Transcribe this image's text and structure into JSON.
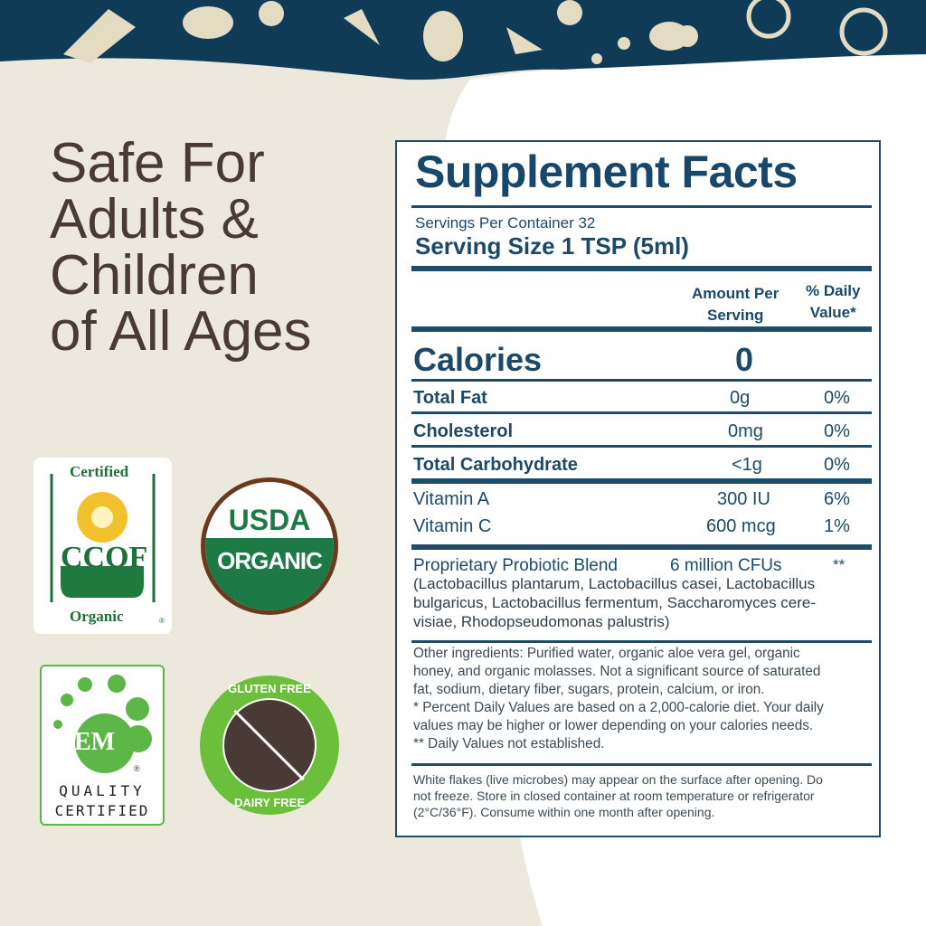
{
  "headline": [
    "Safe For",
    "Adults &",
    "Children",
    "of All Ages"
  ],
  "colors": {
    "navy": "#0f3b57",
    "cream": "#ece8dc",
    "text": "#1b4a68",
    "green": "#1e7a45",
    "brown": "#6a3a1e"
  },
  "badges": {
    "ccof": {
      "top": "Certified",
      "name": "CCOF",
      "bottom": "Organic",
      "mark": "®"
    },
    "usda": {
      "top": "USDA",
      "bottom": "ORGANIC"
    },
    "em": {
      "logo": "EM",
      "mark": "®",
      "line1": "QUALITY",
      "line2": "CERTIFIED"
    },
    "gluten": {
      "top": "GLUTEN FREE",
      "bottom": "DAIRY FREE"
    }
  },
  "facts": {
    "title": "Supplement Facts",
    "servings_per_container": "Servings Per Container 32",
    "serving_size": "Serving Size 1 TSP (5ml)",
    "col_amount": [
      "Amount Per",
      "Serving"
    ],
    "col_dv": [
      "% Daily",
      "Value*"
    ],
    "calories": {
      "label": "Calories",
      "amount": "0"
    },
    "rows": [
      {
        "label": "Total Fat",
        "amount": "0g",
        "dv": "0%"
      },
      {
        "label": "Cholesterol",
        "amount": "0mg",
        "dv": "0%"
      },
      {
        "label": "Total Carbohydrate",
        "amount": "<1g",
        "dv": "0%"
      },
      {
        "label": "Vitamin A",
        "amount": "300 IU",
        "dv": "6%"
      },
      {
        "label": "Vitamin C",
        "amount": "600 mcg",
        "dv": "1%"
      }
    ],
    "blend": {
      "label": "Proprietary Probiotic Blend",
      "amount": "6 million CFUs",
      "dv": "**",
      "lines": [
        "(Lactobacillus plantarum, Lactobacillus casei, Lactobacillus",
        "bulgaricus, Lactobacillus fermentum, Saccharomyces cere-",
        "visiae, Rhodopseudomonas palustris)"
      ]
    },
    "other": [
      "Other ingredients: Purified water, organic aloe vera gel, organic",
      "honey, and organic molasses. Not a significant source of saturated",
      "fat, sodium, dietary fiber, sugars, protein, calcium, or iron.",
      "* Percent Daily Values are based on a 2,000-calorie diet. Your daily",
      "values may be higher or lower depending on your calories needs.",
      "** Daily Values not established."
    ],
    "notice": [
      "White flakes (live microbes) may appear on the surface after opening. Do",
      "not freeze. Store in closed container at room temperature or refrigerator",
      "(2°C/36°F). Consume within one month after opening."
    ]
  }
}
